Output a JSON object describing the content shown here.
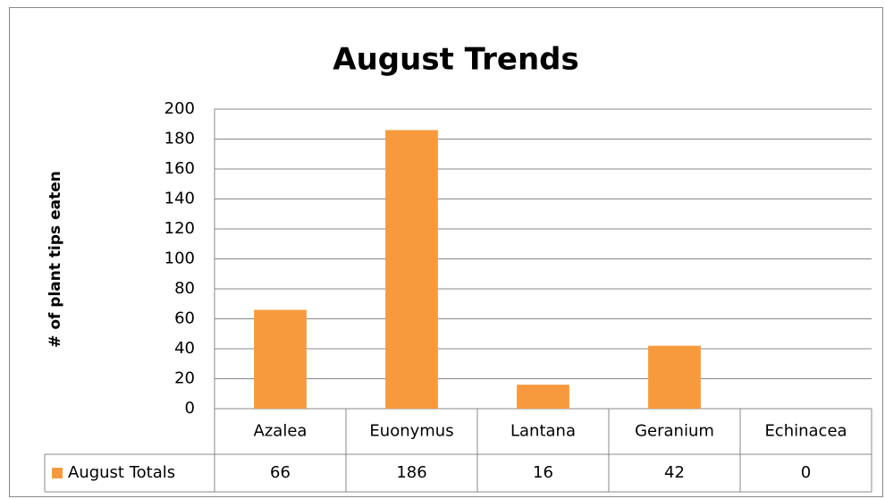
{
  "chart_data": {
    "type": "bar",
    "title": "August Trends",
    "y_axis_label": "# of plant tips eaten",
    "categories": [
      "Azalea",
      "Euonymus",
      "Lantana",
      "Geranium",
      "Echinacea"
    ],
    "series": [
      {
        "name": "August Totals",
        "color": "#f79a3e",
        "values": [
          66,
          186,
          16,
          42,
          0
        ]
      }
    ],
    "ylim": [
      0,
      200
    ],
    "yticks": [
      0,
      20,
      40,
      60,
      80,
      100,
      120,
      140,
      160,
      180,
      200
    ],
    "grid": true,
    "data_table": true
  }
}
